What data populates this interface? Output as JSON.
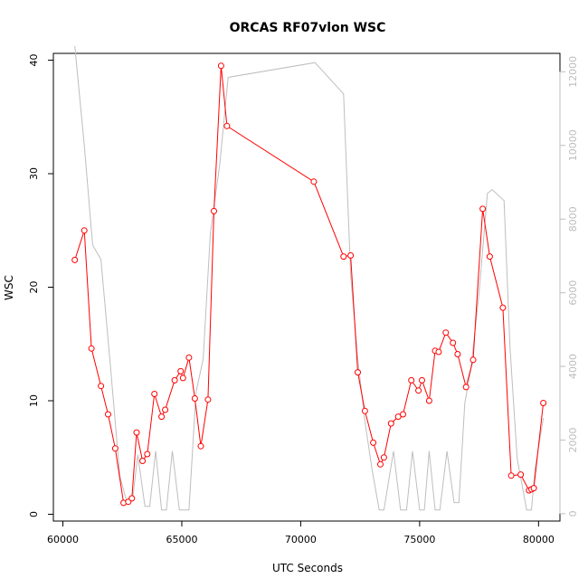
{
  "chart_data": {
    "type": "line",
    "title": "ORCAS RF07vlon WSC",
    "xlabel": "UTC Seconds",
    "ylabel": "WSC",
    "xlim": [
      59600,
      80900
    ],
    "ylim": [
      -0.6,
      40.6
    ],
    "x_ticks": [
      60000,
      65000,
      70000,
      75000,
      80000
    ],
    "y_ticks": [
      0,
      10,
      20,
      30,
      40
    ],
    "y2lim": [
      -200,
      12500
    ],
    "y2_ticks": [
      0,
      2000,
      4000,
      6000,
      8000,
      10000,
      12000
    ],
    "colors": {
      "primary": "#ff0000",
      "secondary": "#bebebe"
    },
    "grid": false,
    "series": [
      {
        "axis": "left",
        "style": "line+points",
        "x": [
          60500,
          60900,
          61200,
          61600,
          61900,
          62200,
          62550,
          62750,
          62900,
          63100,
          63350,
          63550,
          63850,
          64150,
          64300,
          64700,
          64950,
          65050,
          65300,
          65550,
          65800,
          66100,
          66350,
          66650,
          66900,
          70550,
          71800,
          72100,
          72400,
          72700,
          73050,
          73350,
          73500,
          73800,
          74100,
          74300,
          74650,
          74950,
          75100,
          75400,
          75650,
          75800,
          76100,
          76400,
          76600,
          76950,
          77250,
          77650,
          77950,
          78500,
          78850,
          79250,
          79600,
          79700,
          79800,
          80200
        ],
        "y": [
          22.4,
          25.0,
          14.6,
          11.3,
          8.8,
          5.8,
          1.0,
          1.1,
          1.4,
          7.2,
          4.7,
          5.3,
          10.6,
          8.6,
          9.2,
          11.8,
          12.6,
          12.0,
          13.8,
          10.2,
          6.0,
          10.1,
          26.7,
          39.5,
          34.2,
          29.3,
          22.7,
          22.8,
          12.5,
          9.1,
          6.3,
          4.4,
          5.0,
          8.0,
          8.6,
          8.8,
          11.8,
          10.9,
          11.8,
          10.0,
          14.4,
          14.3,
          16.0,
          15.1,
          14.1,
          11.2,
          13.6,
          26.9,
          22.7,
          18.2,
          3.4,
          3.5,
          2.1,
          2.2,
          2.3,
          9.8
        ]
      },
      {
        "axis": "right",
        "style": "line",
        "x": [
          60500,
          60900,
          61250,
          61600,
          62000,
          62400,
          62700,
          62950,
          63150,
          63450,
          63650,
          63900,
          64150,
          64350,
          64600,
          64900,
          65000,
          65300,
          65600,
          65900,
          66200,
          66600,
          66950,
          70600,
          71800,
          72100,
          72400,
          72700,
          73000,
          73300,
          73500,
          73900,
          74200,
          74450,
          74700,
          75000,
          75200,
          75400,
          75650,
          75850,
          76150,
          76450,
          76650,
          76900,
          77150,
          77500,
          77850,
          78050,
          78550,
          78800,
          79100,
          79500,
          79700,
          79850,
          80200
        ],
        "y": [
          12700,
          10000,
          7300,
          6900,
          4000,
          1000,
          300,
          500,
          1600,
          200,
          200,
          1700,
          100,
          100,
          1700,
          100,
          100,
          100,
          3300,
          4200,
          7600,
          9500,
          11850,
          12250,
          11400,
          6500,
          4200,
          2500,
          1200,
          100,
          100,
          1700,
          100,
          100,
          1700,
          100,
          100,
          1700,
          100,
          100,
          1700,
          300,
          300,
          3000,
          3900,
          6000,
          8700,
          8800,
          8500,
          4500,
          1500,
          100,
          100,
          1200,
          2600
        ]
      }
    ]
  }
}
